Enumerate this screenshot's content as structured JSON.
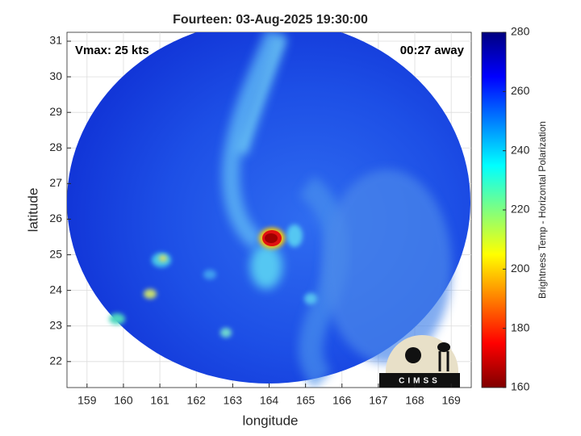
{
  "chart_data": {
    "type": "image",
    "title": "Fourteen: 03-Aug-2025 19:30:00",
    "xlabel": "longitude",
    "ylabel": "latitude",
    "xlim": [
      158.45,
      169.55
    ],
    "ylim": [
      21.27,
      31.25
    ],
    "xticks": [
      159,
      160,
      161,
      162,
      163,
      164,
      165,
      166,
      167,
      168,
      169
    ],
    "yticks": [
      22,
      23,
      24,
      25,
      26,
      27,
      28,
      29,
      30,
      31
    ],
    "grid": true,
    "annotations": [
      "Vmax: 25 kts",
      "00:27 away"
    ],
    "colorbar": {
      "label": "Brightness Temp - Horizontal Polarization",
      "lim": [
        160,
        280
      ],
      "ticks": [
        160,
        180,
        200,
        220,
        240,
        260,
        280
      ]
    },
    "logo": "CIMSS"
  }
}
